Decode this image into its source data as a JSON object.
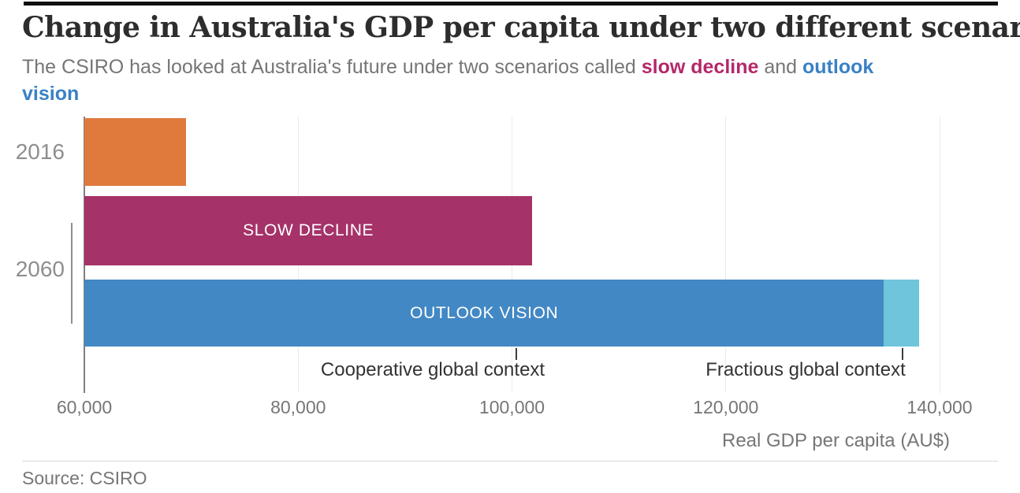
{
  "header": {
    "title": "Change in  Australia's GDP per capita under two different scenarios",
    "subtitle_lines": [
      [
        {
          "t": "The CSIRO has looked at Australia's future under two scenarios called "
        },
        {
          "t": "slow decline",
          "c": "magenta_text"
        },
        {
          "t": " and "
        },
        {
          "t": "outlook",
          "c": "blue_text"
        }
      ],
      [
        {
          "t": "vision",
          "c": "blue_text"
        }
      ]
    ]
  },
  "chart_data": {
    "type": "bar",
    "orientation": "horizontal",
    "title": "Change in  Australia's GDP per capita under two different scenarios",
    "xlabel": "Real GDP per capita (AU$)",
    "baseline": 60000,
    "xlim": [
      60000,
      141500
    ],
    "x_tick_values": [
      60000,
      80000,
      100000,
      120000,
      140000
    ],
    "x_ticks": [
      "60,000",
      "80,000",
      "100,000",
      "120,000",
      "140,000"
    ],
    "grid": true,
    "rows": [
      {
        "year": "2016",
        "bars": [
          {
            "name": "",
            "value": 69500,
            "color_key": "orange"
          }
        ]
      },
      {
        "year": "2060",
        "bars": [
          {
            "name": "SLOW DECLINE",
            "value": 101900,
            "color_key": "magenta"
          },
          {
            "name": "OUTLOOK VISION",
            "value": 134800,
            "value_high": 138100,
            "color_key": "blue",
            "high_color_key": "light_blue"
          }
        ]
      }
    ],
    "annotations": [
      {
        "label": "Cooperative global context",
        "value": 100400
      },
      {
        "label": "Fractious global context",
        "value": 136500
      }
    ]
  },
  "footer": {
    "source": "Source: CSIRO"
  },
  "colors": {
    "orange": "#e0793c",
    "magenta": "#a53268",
    "blue": "#4288c4",
    "light_blue": "#6ec5dc",
    "magenta_text": "#b42869",
    "blue_text": "#3a81c5",
    "grid": "#ebebeb",
    "axis": "#7f7f7f",
    "tick": "#3c3c3c",
    "year": "#8e8e8e",
    "muted": "#767676",
    "title": "#2d2d2d"
  }
}
